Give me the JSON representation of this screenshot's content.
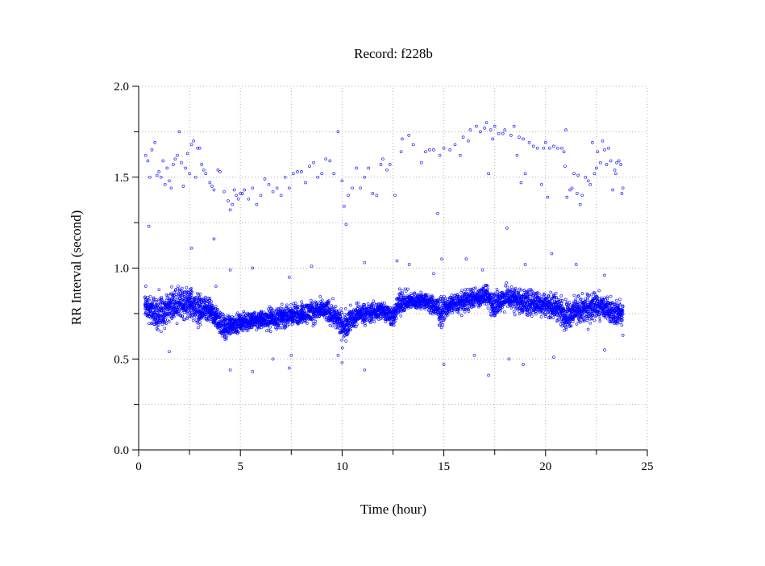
{
  "chart_data": {
    "type": "scatter",
    "title": "Record:  f228b",
    "xlabel": "Time (hour)",
    "ylabel": "RR Interval (second)",
    "xlim": [
      0,
      25
    ],
    "ylim": [
      0,
      2.0
    ],
    "xticks": [
      "0",
      "5",
      "10",
      "15",
      "20",
      "25"
    ],
    "xtick_values": [
      0,
      5,
      10,
      15,
      20,
      25
    ],
    "yticks": [
      "0.0",
      "0.5",
      "1.0",
      "1.5",
      "2.0"
    ],
    "ytick_values": [
      0,
      0.5,
      1.0,
      1.5,
      2.0
    ],
    "grid": true,
    "marker": "open-circle",
    "color": "#0000ff",
    "dense_band": [
      [
        0.3,
        0.7,
        0.88
      ],
      [
        0.8,
        0.65,
        0.86
      ],
      [
        1.0,
        0.6,
        0.88
      ],
      [
        1.3,
        0.68,
        0.86
      ],
      [
        1.6,
        0.7,
        0.9
      ],
      [
        2.0,
        0.68,
        0.92
      ],
      [
        2.5,
        0.7,
        0.92
      ],
      [
        3.0,
        0.65,
        0.88
      ],
      [
        3.5,
        0.68,
        0.84
      ],
      [
        3.8,
        0.65,
        0.8
      ],
      [
        4.2,
        0.58,
        0.76
      ],
      [
        4.5,
        0.62,
        0.76
      ],
      [
        5.0,
        0.64,
        0.76
      ],
      [
        5.5,
        0.64,
        0.78
      ],
      [
        6.0,
        0.65,
        0.78
      ],
      [
        6.5,
        0.65,
        0.8
      ],
      [
        7.0,
        0.66,
        0.8
      ],
      [
        7.5,
        0.66,
        0.82
      ],
      [
        8.0,
        0.68,
        0.82
      ],
      [
        8.5,
        0.68,
        0.84
      ],
      [
        9.0,
        0.7,
        0.84
      ],
      [
        9.5,
        0.66,
        0.84
      ],
      [
        9.8,
        0.62,
        0.8
      ],
      [
        10.0,
        0.56,
        0.78
      ],
      [
        10.3,
        0.62,
        0.8
      ],
      [
        10.8,
        0.68,
        0.82
      ],
      [
        11.3,
        0.68,
        0.82
      ],
      [
        12.0,
        0.7,
        0.84
      ],
      [
        12.5,
        0.66,
        0.8
      ],
      [
        12.8,
        0.72,
        0.9
      ],
      [
        13.3,
        0.76,
        0.88
      ],
      [
        14.0,
        0.76,
        0.88
      ],
      [
        14.5,
        0.72,
        0.86
      ],
      [
        14.8,
        0.66,
        0.86
      ],
      [
        15.3,
        0.74,
        0.86
      ],
      [
        15.8,
        0.74,
        0.88
      ],
      [
        16.3,
        0.76,
        0.9
      ],
      [
        17.0,
        0.78,
        0.92
      ],
      [
        17.5,
        0.7,
        0.9
      ],
      [
        18.0,
        0.76,
        0.92
      ],
      [
        18.5,
        0.74,
        0.92
      ],
      [
        19.0,
        0.72,
        0.9
      ],
      [
        19.5,
        0.72,
        0.9
      ],
      [
        20.0,
        0.72,
        0.88
      ],
      [
        20.5,
        0.7,
        0.88
      ],
      [
        21.0,
        0.64,
        0.84
      ],
      [
        21.5,
        0.68,
        0.86
      ],
      [
        22.0,
        0.66,
        0.88
      ],
      [
        22.5,
        0.7,
        0.88
      ],
      [
        23.0,
        0.7,
        0.86
      ],
      [
        23.5,
        0.66,
        0.84
      ],
      [
        23.8,
        0.68,
        0.82
      ]
    ],
    "points": [
      [
        0.35,
        1.62
      ],
      [
        0.45,
        1.59
      ],
      [
        0.5,
        1.23
      ],
      [
        0.55,
        1.5
      ],
      [
        0.65,
        1.65
      ],
      [
        0.8,
        1.69
      ],
      [
        0.9,
        1.51
      ],
      [
        1.0,
        1.53
      ],
      [
        1.1,
        1.5
      ],
      [
        1.2,
        1.59
      ],
      [
        1.3,
        1.46
      ],
      [
        1.4,
        1.55
      ],
      [
        1.5,
        1.48
      ],
      [
        1.6,
        1.44
      ],
      [
        1.7,
        1.57
      ],
      [
        1.8,
        1.6
      ],
      [
        1.9,
        1.62
      ],
      [
        2.0,
        1.75
      ],
      [
        2.1,
        1.58
      ],
      [
        2.2,
        1.45
      ],
      [
        2.3,
        1.55
      ],
      [
        2.4,
        1.63
      ],
      [
        2.5,
        1.52
      ],
      [
        2.6,
        1.68
      ],
      [
        2.7,
        1.7
      ],
      [
        2.8,
        1.5
      ],
      [
        2.9,
        1.66
      ],
      [
        3.0,
        1.66
      ],
      [
        3.1,
        1.57
      ],
      [
        3.2,
        1.54
      ],
      [
        3.3,
        1.52
      ],
      [
        3.5,
        1.47
      ],
      [
        3.6,
        1.45
      ],
      [
        3.7,
        1.43
      ],
      [
        3.9,
        1.54
      ],
      [
        4.0,
        1.53
      ],
      [
        4.2,
        1.42
      ],
      [
        4.4,
        1.37
      ],
      [
        4.5,
        1.32
      ],
      [
        4.6,
        1.35
      ],
      [
        4.7,
        1.43
      ],
      [
        4.8,
        1.4
      ],
      [
        4.9,
        1.38
      ],
      [
        5.0,
        1.41
      ],
      [
        5.1,
        1.41
      ],
      [
        5.2,
        1.43
      ],
      [
        5.4,
        1.38
      ],
      [
        5.6,
        1.44
      ],
      [
        5.8,
        1.35
      ],
      [
        6.0,
        1.4
      ],
      [
        6.2,
        1.49
      ],
      [
        6.4,
        1.46
      ],
      [
        6.6,
        1.42
      ],
      [
        6.8,
        1.44
      ],
      [
        7.0,
        1.4
      ],
      [
        7.2,
        1.5
      ],
      [
        7.4,
        1.44
      ],
      [
        7.6,
        1.52
      ],
      [
        7.8,
        1.53
      ],
      [
        8.0,
        1.53
      ],
      [
        8.2,
        1.47
      ],
      [
        8.4,
        1.56
      ],
      [
        8.6,
        1.58
      ],
      [
        8.8,
        1.5
      ],
      [
        9.0,
        1.52
      ],
      [
        9.2,
        1.6
      ],
      [
        9.4,
        1.59
      ],
      [
        9.6,
        1.52
      ],
      [
        9.8,
        1.75
      ],
      [
        10.0,
        1.48
      ],
      [
        10.1,
        1.34
      ],
      [
        10.2,
        1.24
      ],
      [
        10.3,
        1.4
      ],
      [
        10.5,
        1.44
      ],
      [
        10.7,
        1.55
      ],
      [
        10.9,
        1.44
      ],
      [
        11.1,
        1.5
      ],
      [
        11.3,
        1.55
      ],
      [
        11.5,
        1.41
      ],
      [
        11.7,
        1.4
      ],
      [
        11.9,
        1.57
      ],
      [
        12.0,
        1.6
      ],
      [
        12.2,
        1.54
      ],
      [
        12.35,
        1.57
      ],
      [
        12.6,
        1.4
      ],
      [
        12.9,
        1.64
      ],
      [
        12.95,
        1.71
      ],
      [
        13.28,
        1.73
      ],
      [
        13.5,
        1.68
      ],
      [
        13.9,
        1.58
      ],
      [
        14.1,
        1.64
      ],
      [
        14.3,
        1.65
      ],
      [
        14.5,
        1.65
      ],
      [
        14.7,
        1.3
      ],
      [
        14.8,
        1.62
      ],
      [
        15.0,
        1.66
      ],
      [
        15.3,
        1.65
      ],
      [
        15.55,
        1.68
      ],
      [
        15.8,
        1.62
      ],
      [
        15.95,
        1.72
      ],
      [
        16.2,
        1.7
      ],
      [
        16.3,
        1.76
      ],
      [
        16.6,
        1.78
      ],
      [
        16.8,
        1.75
      ],
      [
        17.0,
        1.77
      ],
      [
        17.1,
        1.8
      ],
      [
        17.2,
        1.52
      ],
      [
        17.3,
        1.76
      ],
      [
        17.4,
        1.71
      ],
      [
        17.5,
        1.78
      ],
      [
        17.7,
        1.74
      ],
      [
        17.9,
        1.74
      ],
      [
        18.0,
        1.76
      ],
      [
        18.1,
        1.22
      ],
      [
        18.3,
        1.73
      ],
      [
        18.45,
        1.78
      ],
      [
        18.6,
        1.62
      ],
      [
        18.7,
        1.72
      ],
      [
        18.8,
        1.47
      ],
      [
        18.9,
        1.71
      ],
      [
        19.0,
        1.52
      ],
      [
        19.2,
        1.69
      ],
      [
        19.4,
        1.67
      ],
      [
        19.6,
        1.66
      ],
      [
        19.8,
        1.46
      ],
      [
        19.9,
        1.66
      ],
      [
        20.0,
        1.69
      ],
      [
        20.1,
        1.39
      ],
      [
        20.2,
        1.66
      ],
      [
        20.4,
        1.67
      ],
      [
        20.6,
        1.66
      ],
      [
        20.8,
        1.66
      ],
      [
        20.9,
        1.64
      ],
      [
        20.96,
        1.56
      ],
      [
        21.0,
        1.76
      ],
      [
        21.05,
        1.39
      ],
      [
        21.2,
        1.43
      ],
      [
        21.3,
        1.44
      ],
      [
        21.4,
        1.52
      ],
      [
        21.55,
        1.41
      ],
      [
        21.6,
        1.51
      ],
      [
        21.7,
        1.35
      ],
      [
        21.8,
        1.4
      ],
      [
        21.96,
        1.5
      ],
      [
        22.1,
        1.48
      ],
      [
        22.2,
        1.46
      ],
      [
        22.3,
        1.69
      ],
      [
        22.4,
        1.52
      ],
      [
        22.5,
        1.55
      ],
      [
        22.55,
        1.64
      ],
      [
        22.7,
        1.58
      ],
      [
        22.8,
        1.7
      ],
      [
        22.9,
        1.65
      ],
      [
        23.0,
        1.57
      ],
      [
        23.1,
        1.66
      ],
      [
        23.2,
        1.59
      ],
      [
        23.3,
        1.43
      ],
      [
        23.4,
        1.54
      ],
      [
        23.45,
        1.52
      ],
      [
        23.5,
        1.58
      ],
      [
        23.6,
        1.59
      ],
      [
        23.7,
        1.57
      ],
      [
        23.75,
        1.41
      ],
      [
        23.8,
        1.44
      ],
      [
        0.35,
        0.9
      ],
      [
        1.5,
        0.54
      ],
      [
        2.6,
        1.11
      ],
      [
        3.7,
        1.16
      ],
      [
        3.8,
        0.9
      ],
      [
        4.5,
        0.99
      ],
      [
        4.5,
        0.44
      ],
      [
        4.8,
        0.66
      ],
      [
        5.6,
        1.0
      ],
      [
        5.6,
        0.43
      ],
      [
        6.6,
        0.5
      ],
      [
        7.4,
        0.95
      ],
      [
        7.4,
        0.45
      ],
      [
        7.5,
        0.52
      ],
      [
        8.5,
        1.01
      ],
      [
        9.8,
        0.52
      ],
      [
        10.0,
        0.48
      ],
      [
        11.1,
        1.03
      ],
      [
        11.1,
        0.44
      ],
      [
        12.7,
        1.04
      ],
      [
        13.3,
        1.02
      ],
      [
        14.5,
        0.97
      ],
      [
        14.9,
        1.05
      ],
      [
        15.0,
        0.47
      ],
      [
        16.1,
        1.05
      ],
      [
        16.5,
        0.52
      ],
      [
        16.9,
        0.99
      ],
      [
        17.2,
        0.41
      ],
      [
        18.2,
        0.5
      ],
      [
        18.9,
        0.47
      ],
      [
        19.0,
        1.02
      ],
      [
        20.3,
        1.08
      ],
      [
        20.4,
        0.51
      ],
      [
        21.5,
        1.02
      ],
      [
        22.9,
        0.55
      ],
      [
        22.9,
        0.96
      ],
      [
        23.8,
        0.63
      ]
    ]
  }
}
